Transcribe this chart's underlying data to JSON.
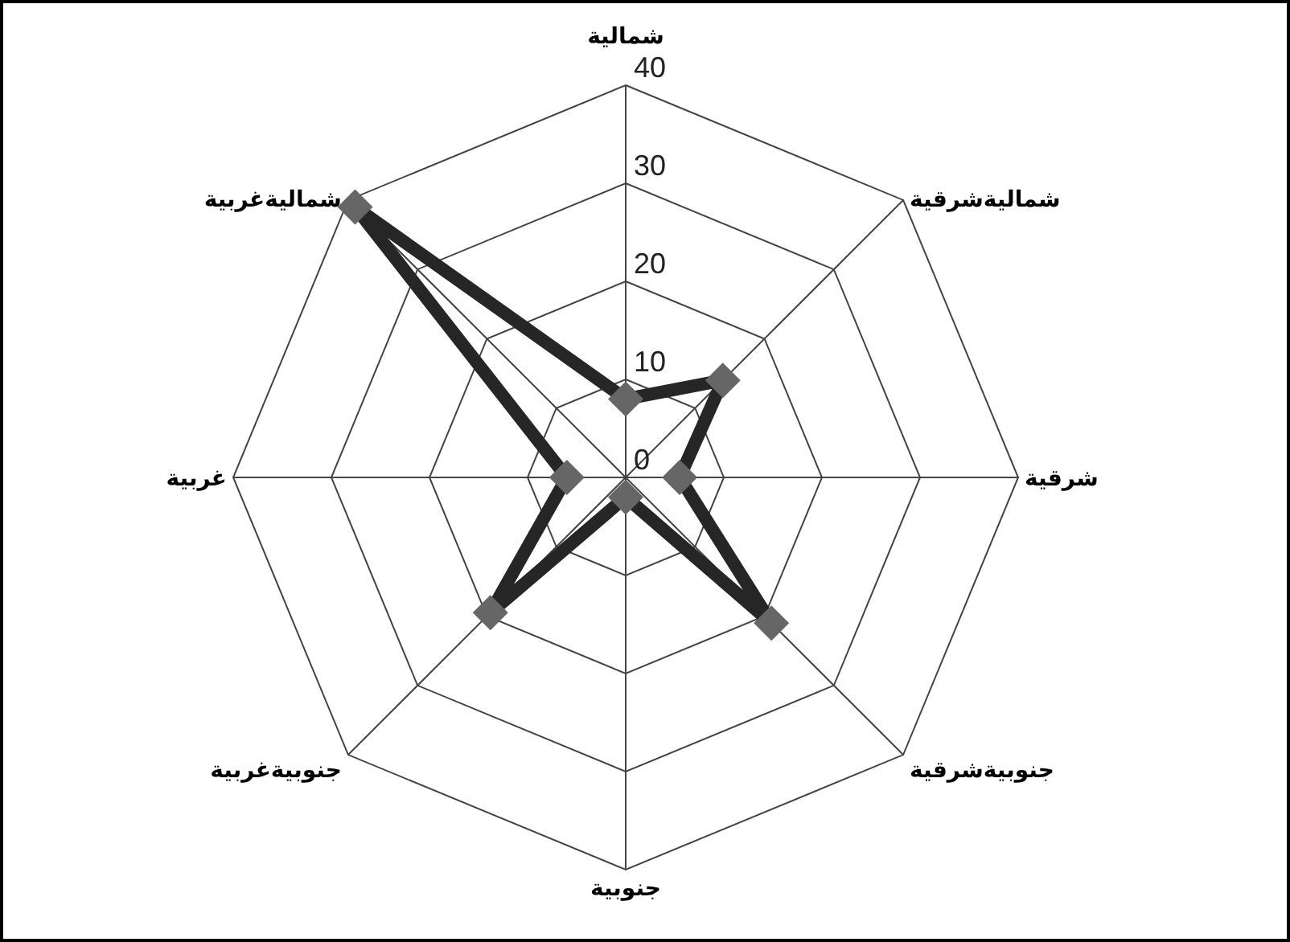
{
  "chart_data": {
    "type": "radar",
    "categories": [
      "شمالية",
      "شماليةشرقية",
      "شرقية",
      "جنوبيةشرقية",
      "جنوبية",
      "جنوبيةغربية",
      "غربية",
      "شماليةغربية"
    ],
    "series": [
      {
        "color": "#262626",
        "values": [
          8,
          14,
          5.5,
          21,
          2,
          19.5,
          6,
          39
        ]
      }
    ],
    "ylim": [
      0,
      40
    ],
    "yticks": [
      0,
      10,
      20,
      30,
      40
    ],
    "grid": true,
    "marker": "diamond"
  }
}
